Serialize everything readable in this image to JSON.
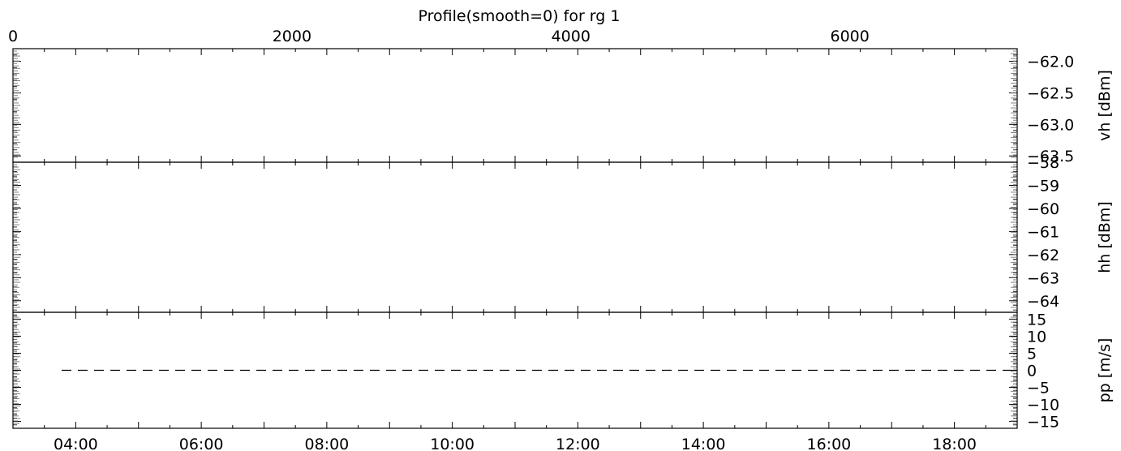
{
  "title": "Profile(smooth=0) for rg 1",
  "top_axis": {
    "ticks": [
      0,
      2000,
      4000,
      6000
    ],
    "labels": [
      "0",
      "2000",
      "4000",
      "6000"
    ],
    "range": [
      0,
      7200
    ]
  },
  "bottom_axis": {
    "labels": [
      "04:00",
      "06:00",
      "08:00",
      "10:00",
      "12:00",
      "14:00",
      "16:00",
      "18:00"
    ],
    "ticks_hours": [
      4,
      6,
      8,
      10,
      12,
      14,
      16,
      18
    ],
    "range_hours": [
      3,
      19
    ]
  },
  "colors": {
    "axis": "#000000",
    "data": "#808080",
    "background": "#ffffff"
  },
  "chart_data": [
    {
      "type": "line",
      "ylabel": "vh [dBm]",
      "ylim": [
        -63.6,
        -61.8
      ],
      "ticks": [
        -62.0,
        -62.5,
        -63.0,
        -63.5
      ],
      "tick_labels": [
        "−62.0",
        "−62.5",
        "−63.0",
        "−63.5"
      ],
      "series": [
        {
          "values": []
        }
      ]
    },
    {
      "type": "line",
      "ylabel": "hh [dBm]",
      "ylim": [
        -64.5,
        -58
      ],
      "ticks": [
        -58,
        -59,
        -60,
        -61,
        -62,
        -63,
        -64
      ],
      "tick_labels": [
        "−58",
        "−59",
        "−60",
        "−61",
        "−62",
        "−63",
        "−64"
      ],
      "series": [
        {
          "values": []
        }
      ]
    },
    {
      "type": "line",
      "ylabel": "pp [m/s]",
      "ylim": [
        -17,
        17
      ],
      "ticks": [
        15,
        10,
        5,
        0,
        -5,
        -10,
        -15
      ],
      "tick_labels": [
        "15",
        "10",
        "5",
        "0",
        "−5",
        "−10",
        "−15"
      ],
      "reference_line": 0,
      "series": [
        {
          "values": []
        }
      ]
    }
  ]
}
